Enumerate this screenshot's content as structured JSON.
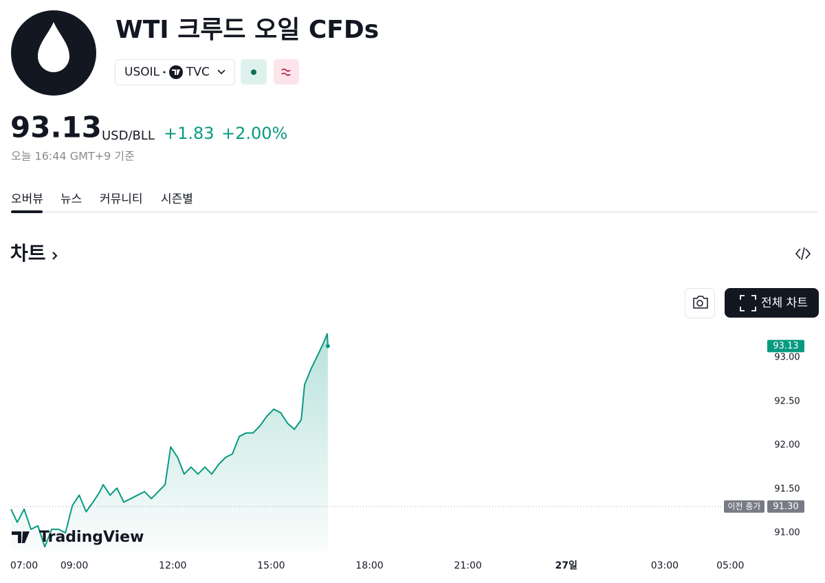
{
  "header": {
    "title": "WTI 크루드 오일 CFDs",
    "symbol": "USOIL",
    "exchange": "TVC"
  },
  "quote": {
    "price": "93.13",
    "currency": "USD/BLL",
    "change": "+1.83",
    "change_percent": "+2.00%",
    "timestamp": "오늘 16:44 GMT+9 기준"
  },
  "tabs": [
    "오버뷰",
    "뉴스",
    "커뮤니티",
    "시즌별"
  ],
  "section_title": "차트",
  "fullscreen_button": "전체 차트",
  "chart": {
    "type": "line",
    "color": "#089981",
    "x": [
      7.07,
      7.26,
      7.47,
      7.68,
      7.89,
      8.1,
      8.31,
      8.52,
      8.73,
      8.94,
      9.15,
      9.36,
      9.57,
      9.78,
      9.88,
      10.09,
      10.3,
      10.51,
      10.72,
      10.93,
      11.14,
      11.35,
      11.56,
      11.77,
      11.94,
      12.15,
      12.35,
      12.56,
      12.77,
      12.98,
      13.19,
      13.4,
      13.61,
      13.82,
      14.03,
      14.24,
      14.45,
      14.66,
      14.87,
      15.08,
      15.29,
      15.5,
      15.71,
      15.92,
      16.02,
      16.23,
      16.44,
      16.59,
      16.71,
      16.73
    ],
    "values": [
      91.27,
      91.12,
      91.27,
      91.04,
      91.08,
      90.84,
      91.04,
      91.04,
      91.0,
      91.31,
      91.43,
      91.24,
      91.35,
      91.47,
      91.55,
      91.43,
      91.51,
      91.35,
      91.39,
      91.43,
      91.47,
      91.39,
      91.47,
      91.55,
      91.98,
      91.86,
      91.67,
      91.75,
      91.67,
      91.75,
      91.67,
      91.78,
      91.86,
      91.9,
      92.1,
      92.14,
      92.14,
      92.22,
      92.33,
      92.41,
      92.37,
      92.25,
      92.18,
      92.29,
      92.69,
      92.88,
      93.04,
      93.16,
      93.27,
      93.13
    ],
    "xlim": [
      7.07,
      30.0
    ],
    "ylim": [
      90.8,
      93.4
    ],
    "xticks": [
      {
        "value": 7,
        "label": "07:00"
      },
      {
        "value": 9,
        "label": "09:00"
      },
      {
        "value": 12,
        "label": "12:00"
      },
      {
        "value": 15,
        "label": "15:00"
      },
      {
        "value": 18,
        "label": "18:00"
      },
      {
        "value": 21,
        "label": "21:00"
      },
      {
        "value": 24,
        "label": "27일",
        "bold": true
      },
      {
        "value": 27,
        "label": "03:00"
      },
      {
        "value": 29,
        "label": "05:00"
      }
    ],
    "yticks": [
      {
        "value": 91,
        "label": "91.00"
      },
      {
        "value": 91.5,
        "label": "91.50"
      },
      {
        "value": 92,
        "label": "92.00"
      },
      {
        "value": 92.5,
        "label": "92.50"
      },
      {
        "value": 93,
        "label": "93.00"
      }
    ],
    "previous_close": {
      "value": 91.3,
      "label": "91.30"
    },
    "previous_close_title": "이전 종가",
    "watermark": "TradingView"
  }
}
